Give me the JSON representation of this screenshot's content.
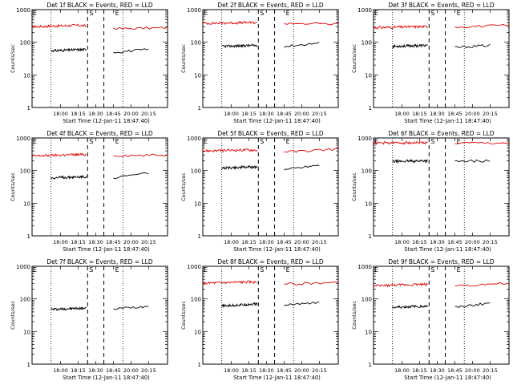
{
  "chart_data": {
    "type": "line",
    "layout": "3x3 grid",
    "shared": {
      "ylabel": "Counts/sec",
      "xlabel": "Start Time (12-Jan-11 18:47:40)",
      "yscale": "log",
      "ylim": [
        1,
        1000
      ],
      "yticks": [
        "1",
        "10",
        "100",
        "1000"
      ],
      "xticks": [
        "18:00",
        "18:15",
        "18:30",
        "18:45",
        "20:00",
        "20:15"
      ],
      "markers": {
        "start": "S",
        "end": "E"
      },
      "series_colors": {
        "events": "#000000",
        "lld": "#e00000"
      },
      "vline_styles": [
        "dotted",
        "dashed",
        "dashed",
        "dotted"
      ],
      "legend": "in title"
    },
    "panels": [
      {
        "title": "Det 1f BLACK = Events, RED = LLD",
        "lld": [
          300,
          330,
          260,
          280
        ],
        "events": [
          55,
          60,
          50,
          60
        ]
      },
      {
        "title": "Det 2f BLACK = Events, RED = LLD",
        "lld": [
          380,
          400,
          380,
          360
        ],
        "events": [
          75,
          80,
          75,
          95
        ]
      },
      {
        "title": "Det 3f BLACK = Events, RED = LLD",
        "lld": [
          280,
          300,
          300,
          330
        ],
        "events": [
          75,
          80,
          70,
          80
        ]
      },
      {
        "title": "Det 4f BLACK = Events, RED = LLD",
        "lld": [
          280,
          310,
          290,
          300
        ],
        "events": [
          60,
          65,
          60,
          85
        ]
      },
      {
        "title": "Det 5f BLACK = Events, RED = LLD",
        "lld": [
          400,
          430,
          380,
          460
        ],
        "events": [
          120,
          130,
          110,
          150
        ]
      },
      {
        "title": "Det 6f BLACK = Events, RED = LLD",
        "lld": [
          700,
          720,
          690,
          700
        ],
        "events": [
          190,
          200,
          190,
          200
        ]
      },
      {
        "title": "Det 7f BLACK = Events, RED = LLD",
        "lld": [],
        "events": [
          48,
          52,
          50,
          60
        ]
      },
      {
        "title": "Det 8f BLACK = Events, RED = LLD",
        "lld": [
          300,
          330,
          290,
          320
        ],
        "events": [
          60,
          70,
          65,
          80
        ]
      },
      {
        "title": "Det 9f BLACK = Events, RED = LLD",
        "lld": [
          250,
          280,
          260,
          300
        ],
        "events": [
          55,
          60,
          55,
          75
        ]
      }
    ]
  }
}
